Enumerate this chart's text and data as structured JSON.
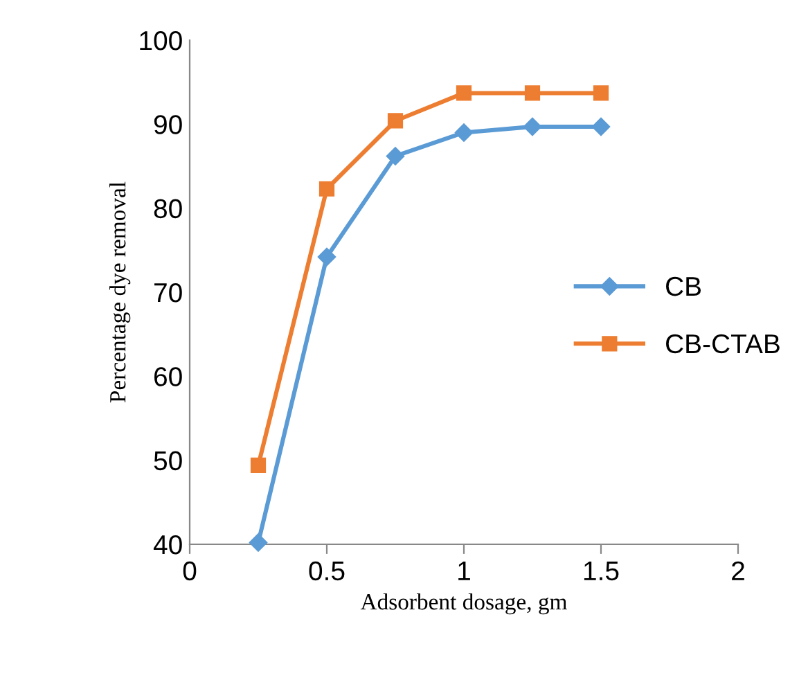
{
  "chart_data": {
    "type": "line",
    "xlabel": "Adsorbent dosage, gm",
    "ylabel": "Percentage dye removal",
    "x": [
      0.25,
      0.5,
      0.75,
      1,
      1.25,
      1.5
    ],
    "series": [
      {
        "name": "CB",
        "color": "#5b9bd5",
        "marker": "diamond",
        "values": [
          40.2,
          74.2,
          86.2,
          89.0,
          89.7,
          89.7
        ]
      },
      {
        "name": "CB-CTAB",
        "color": "#ed7d31",
        "marker": "square",
        "values": [
          49.4,
          82.3,
          90.4,
          93.7,
          93.7,
          93.7
        ]
      }
    ],
    "xlim": [
      0,
      2
    ],
    "xticks": [
      0,
      0.5,
      1,
      1.5,
      2
    ],
    "ylim": [
      40,
      100
    ],
    "yticks": [
      40,
      50,
      60,
      70,
      80,
      90,
      100
    ],
    "grid": false,
    "legend": "right",
    "line_style": "solid"
  }
}
